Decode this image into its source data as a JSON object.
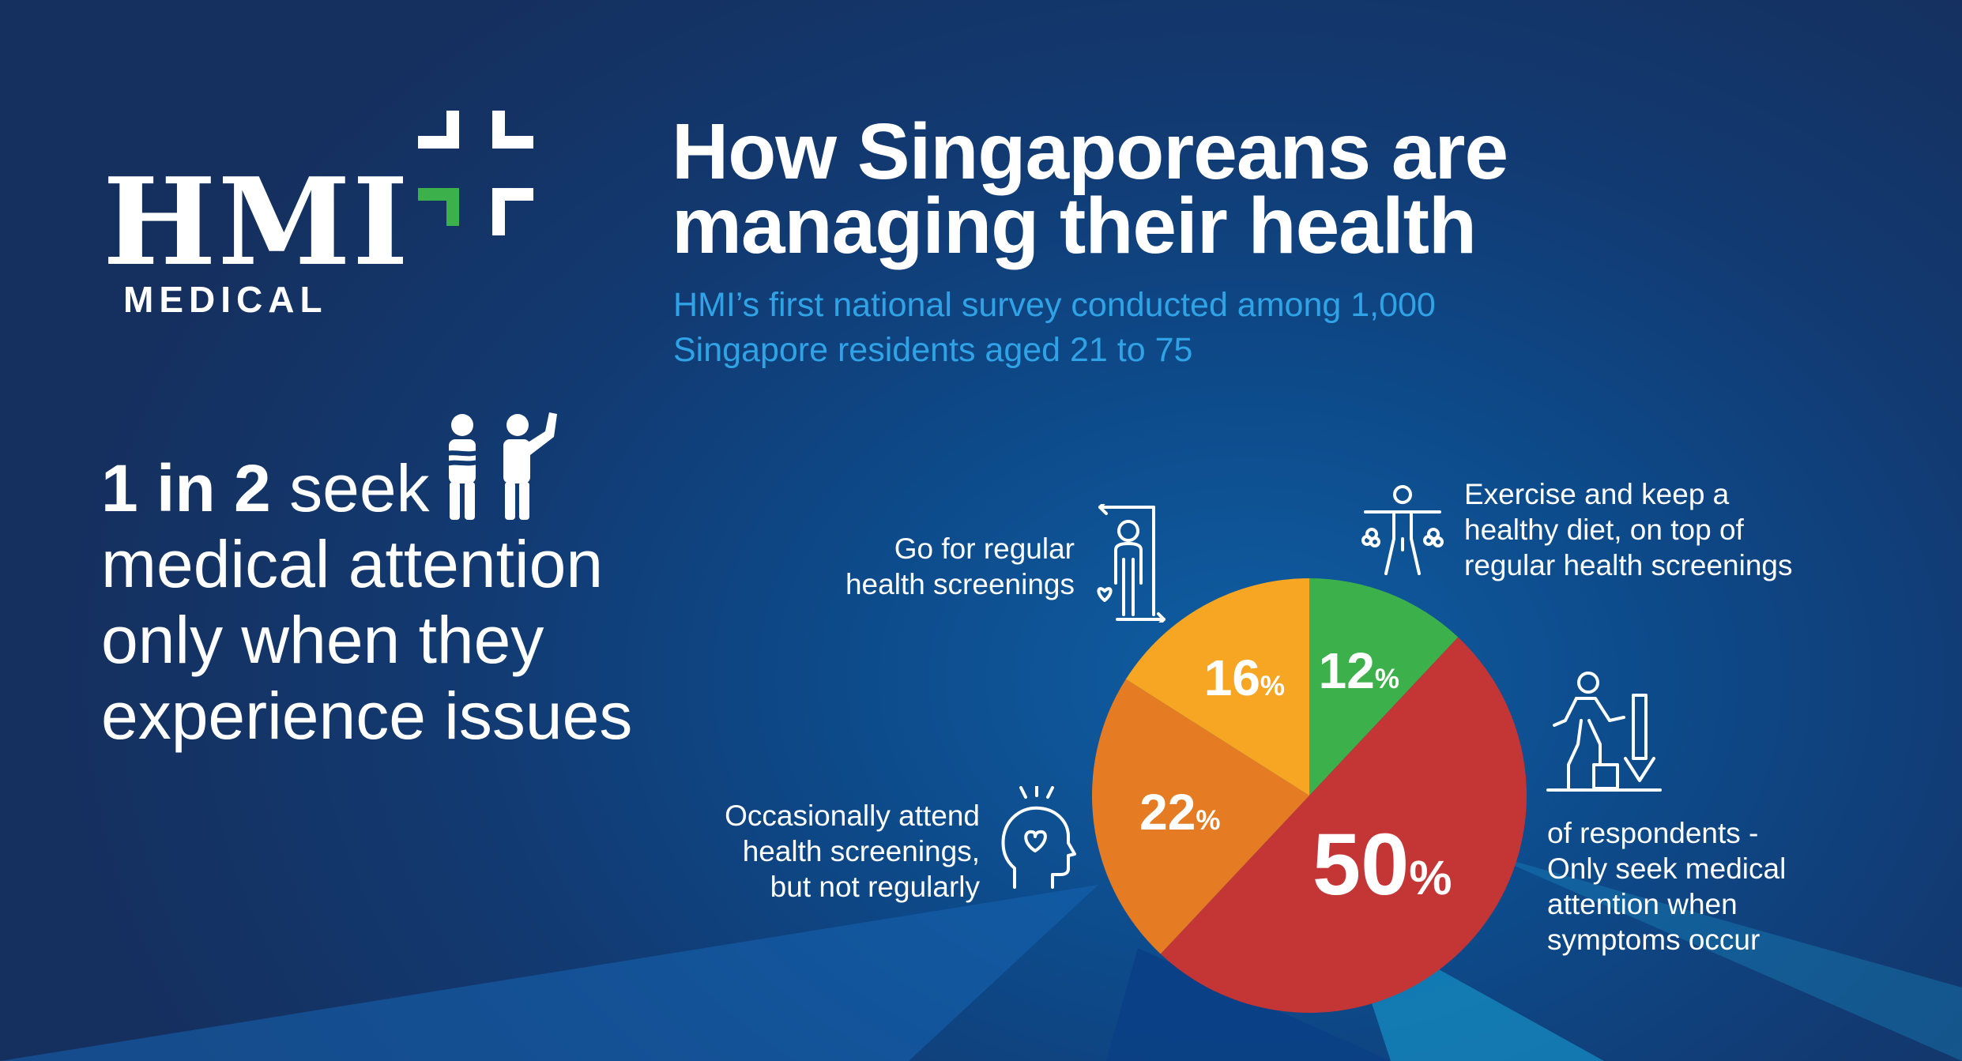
{
  "brand": {
    "name": "HMI",
    "sub": "MEDICAL",
    "colors": {
      "green": "#3cb04a",
      "white": "#ffffff"
    }
  },
  "header": {
    "title_line1": "How Singaporeans are",
    "title_line2": "managing their health",
    "subtitle_line1": "HMI’s first national survey conducted among 1,000",
    "subtitle_line2": "Singapore residents aged 21 to 75"
  },
  "headline": {
    "lead": "1 in 2",
    "lead_rest": " seek",
    "line2": "medical attention",
    "line3": "only when they",
    "line4": "experience issues"
  },
  "labels": {
    "regular": [
      "Go for regular",
      "health screenings"
    ],
    "exercise": [
      "Exercise and keep a",
      "healthy diet, on top of",
      "regular health screenings"
    ],
    "occasional": [
      "Occasionally attend",
      "health screenings,",
      "but not regularly"
    ],
    "symptoms": [
      "of respondents -",
      "Only seek medical",
      "attention when",
      "symptoms occur"
    ]
  },
  "icons": {
    "people": "people-icon",
    "regular": "screening-person-icon",
    "exercise": "exercise-person-icon",
    "occasional": "head-heart-icon",
    "symptoms": "stairs-down-icon"
  },
  "chart_data": {
    "type": "pie",
    "title": "How Singaporeans are managing their health",
    "unit": "%",
    "slices": [
      {
        "label": "Exercise and keep a healthy diet, on top of regular health screenings",
        "value": 12,
        "value_text": "12",
        "color": "#3cb04a"
      },
      {
        "label": "Only seek medical attention when symptoms occur",
        "value": 50,
        "value_text": "50",
        "color": "#c43535"
      },
      {
        "label": "Occasionally attend health screenings, but not regularly",
        "value": 22,
        "value_text": "22",
        "color": "#e57b22"
      },
      {
        "label": "Go for regular health screenings",
        "value": 16,
        "value_text": "16",
        "color": "#f6a623"
      }
    ]
  }
}
